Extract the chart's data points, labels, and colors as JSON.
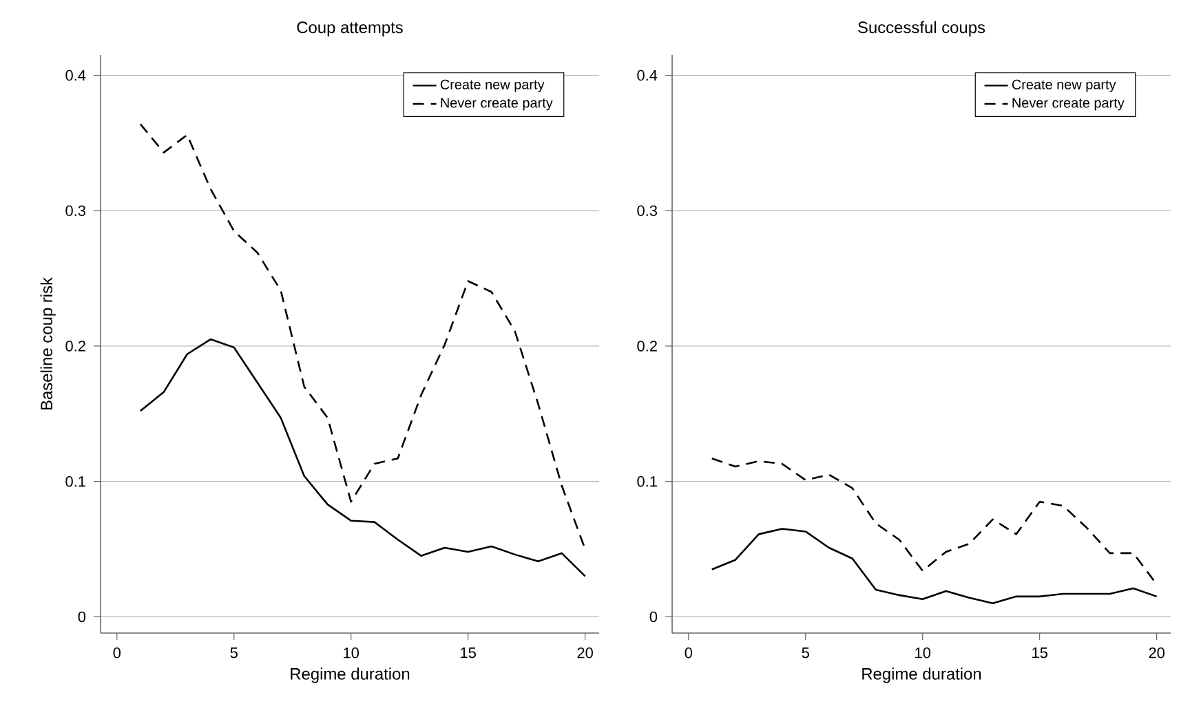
{
  "chart_data": [
    {
      "type": "line",
      "title": "Coup attempts",
      "xlabel": "Regime duration",
      "ylabel": "Baseline coup risk",
      "x": [
        1,
        2,
        3,
        4,
        5,
        6,
        7,
        8,
        9,
        10,
        11,
        12,
        13,
        14,
        15,
        16,
        17,
        18,
        19,
        20
      ],
      "series": [
        {
          "name": "Create new party",
          "color": "#000000",
          "line_style": "solid",
          "values": [
            0.152,
            0.166,
            0.194,
            0.205,
            0.199,
            0.173,
            0.147,
            0.104,
            0.083,
            0.071,
            0.07,
            0.057,
            0.045,
            0.051,
            0.048,
            0.052,
            0.046,
            0.041,
            0.047,
            0.03
          ]
        },
        {
          "name": "Never create party",
          "color": "#000000",
          "line_style": "dashed",
          "values": [
            0.364,
            0.343,
            0.356,
            0.316,
            0.285,
            0.269,
            0.241,
            0.17,
            0.147,
            0.085,
            0.113,
            0.117,
            0.164,
            0.201,
            0.248,
            0.24,
            0.211,
            0.157,
            0.097,
            0.05
          ]
        }
      ],
      "xlim": [
        -0.7,
        20.6
      ],
      "ylim": [
        -0.012,
        0.415
      ],
      "xticks": [
        0,
        5,
        10,
        15,
        20
      ],
      "yticks": [
        0,
        {
          "value": 0.1,
          "label": "0.1"
        },
        {
          "value": 0.2,
          "label": "0.2"
        },
        {
          "value": 0.3,
          "label": "0.3"
        },
        {
          "value": 0.4,
          "label": "0.4"
        }
      ],
      "grid": "y",
      "legend": "top right",
      "marker": "none"
    },
    {
      "type": "line",
      "title": "Successful coups",
      "xlabel": "Regime duration",
      "x": [
        1,
        2,
        3,
        4,
        5,
        6,
        7,
        8,
        9,
        10,
        11,
        12,
        13,
        14,
        15,
        16,
        17,
        18,
        19,
        20
      ],
      "series": [
        {
          "name": "Create new party",
          "color": "#000000",
          "line_style": "solid",
          "values": [
            0.035,
            0.042,
            0.061,
            0.065,
            0.063,
            0.051,
            0.043,
            0.02,
            0.016,
            0.013,
            0.019,
            0.014,
            0.01,
            0.015,
            0.015,
            0.017,
            0.017,
            0.017,
            0.021,
            0.015
          ]
        },
        {
          "name": "Never create party",
          "color": "#000000",
          "line_style": "dashed",
          "values": [
            0.117,
            0.111,
            0.115,
            0.113,
            0.101,
            0.105,
            0.095,
            0.069,
            0.057,
            0.034,
            0.048,
            0.054,
            0.072,
            0.061,
            0.085,
            0.082,
            0.066,
            0.047,
            0.047,
            0.024
          ]
        }
      ],
      "xlim": [
        -0.7,
        20.6
      ],
      "ylim": [
        -0.012,
        0.415
      ],
      "xticks": [
        0,
        5,
        10,
        15,
        20
      ],
      "yticks": [
        0,
        {
          "value": 0.1,
          "label": "0.1"
        },
        {
          "value": 0.2,
          "label": "0.2"
        },
        {
          "value": 0.3,
          "label": "0.3"
        },
        {
          "value": 0.4,
          "label": "0.4"
        }
      ],
      "grid": "y",
      "legend": "top right",
      "marker": "none"
    }
  ]
}
